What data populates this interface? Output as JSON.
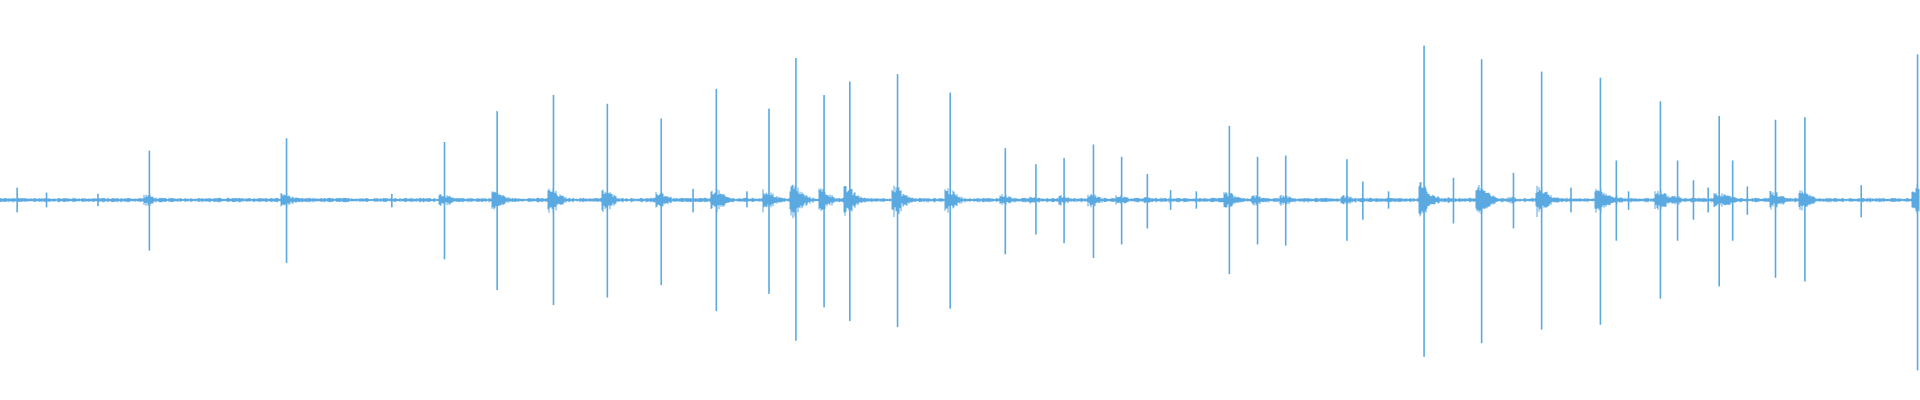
{
  "waveform": {
    "color": "#5aa9e0",
    "xlim": [
      0,
      1568
    ],
    "ylim": [
      -162,
      162
    ],
    "t": [
      14,
      38,
      80,
      122,
      234,
      320,
      363,
      406,
      452,
      496,
      540,
      566,
      585,
      610,
      628,
      650,
      673,
      694,
      733,
      776,
      821,
      846,
      869,
      893,
      916,
      937,
      956,
      977,
      1004,
      1027,
      1050,
      1100,
      1113,
      1134,
      1163,
      1187,
      1210,
      1236,
      1259,
      1283,
      1307,
      1320,
      1330,
      1356,
      1370,
      1383,
      1395,
      1404,
      1415,
      1427,
      1450,
      1474,
      1520,
      1566
    ],
    "max": [
      10,
      6,
      5,
      40,
      50,
      5,
      47,
      72,
      85,
      78,
      66,
      9,
      90,
      7,
      74,
      115,
      85,
      96,
      102,
      87,
      42,
      29,
      34,
      45,
      35,
      21,
      8,
      7,
      60,
      35,
      36,
      33,
      15,
      7,
      125,
      18,
      114,
      22,
      104,
      10,
      99,
      32,
      7,
      80,
      32,
      16,
      10,
      68,
      32,
      11,
      65,
      67,
      12,
      118
    ],
    "min": [
      -10,
      -6,
      -5,
      -41,
      -51,
      -6,
      -48,
      -73,
      -85,
      -79,
      -69,
      -10,
      -90,
      -6,
      -76,
      -114,
      -87,
      -98,
      -103,
      -88,
      -44,
      -28,
      -35,
      -47,
      -36,
      -23,
      -8,
      -7,
      -60,
      -36,
      -37,
      -33,
      -16,
      -7,
      -127,
      -19,
      -116,
      -23,
      -105,
      -10,
      -101,
      -33,
      -8,
      -80,
      -33,
      -16,
      -10,
      -70,
      -33,
      -12,
      -63,
      -66,
      -14,
      -138
    ]
  }
}
